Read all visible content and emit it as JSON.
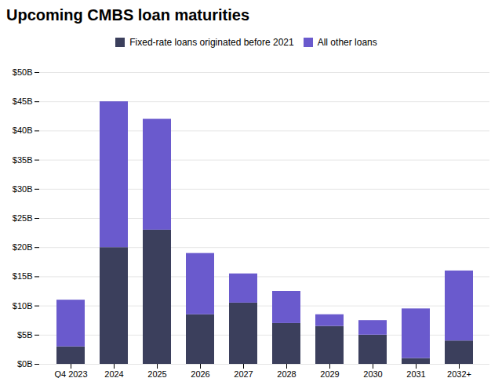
{
  "chart_data": {
    "type": "bar",
    "stacked": true,
    "title": "Upcoming CMBS loan maturities",
    "categories": [
      "Q4 2023",
      "2024",
      "2025",
      "2026",
      "2027",
      "2028",
      "2029",
      "2030",
      "2031",
      "2032+"
    ],
    "series": [
      {
        "name": "Fixed-rate loans originated before 2021",
        "color": "#3b3f5c",
        "values": [
          3.0,
          20.0,
          23.0,
          8.5,
          10.5,
          7.0,
          6.5,
          5.0,
          1.0,
          4.0
        ]
      },
      {
        "name": "All other loans",
        "color": "#6a5acd",
        "values": [
          8.0,
          25.0,
          19.0,
          10.5,
          5.0,
          5.5,
          2.0,
          2.5,
          8.5,
          12.0
        ]
      }
    ],
    "ylim": [
      0,
      50
    ],
    "yticks": [
      {
        "value": 0,
        "label": "$0B"
      },
      {
        "value": 5,
        "label": "$5B"
      },
      {
        "value": 10,
        "label": "$10B"
      },
      {
        "value": 15,
        "label": "$15B"
      },
      {
        "value": 20,
        "label": "$20B"
      },
      {
        "value": 25,
        "label": "$25B"
      },
      {
        "value": 30,
        "label": "$30B"
      },
      {
        "value": 35,
        "label": "$35B"
      },
      {
        "value": 40,
        "label": "$40B"
      },
      {
        "value": 45,
        "label": "$45B"
      },
      {
        "value": 50,
        "label": "$50B"
      }
    ],
    "grid": true,
    "legend": "top"
  }
}
